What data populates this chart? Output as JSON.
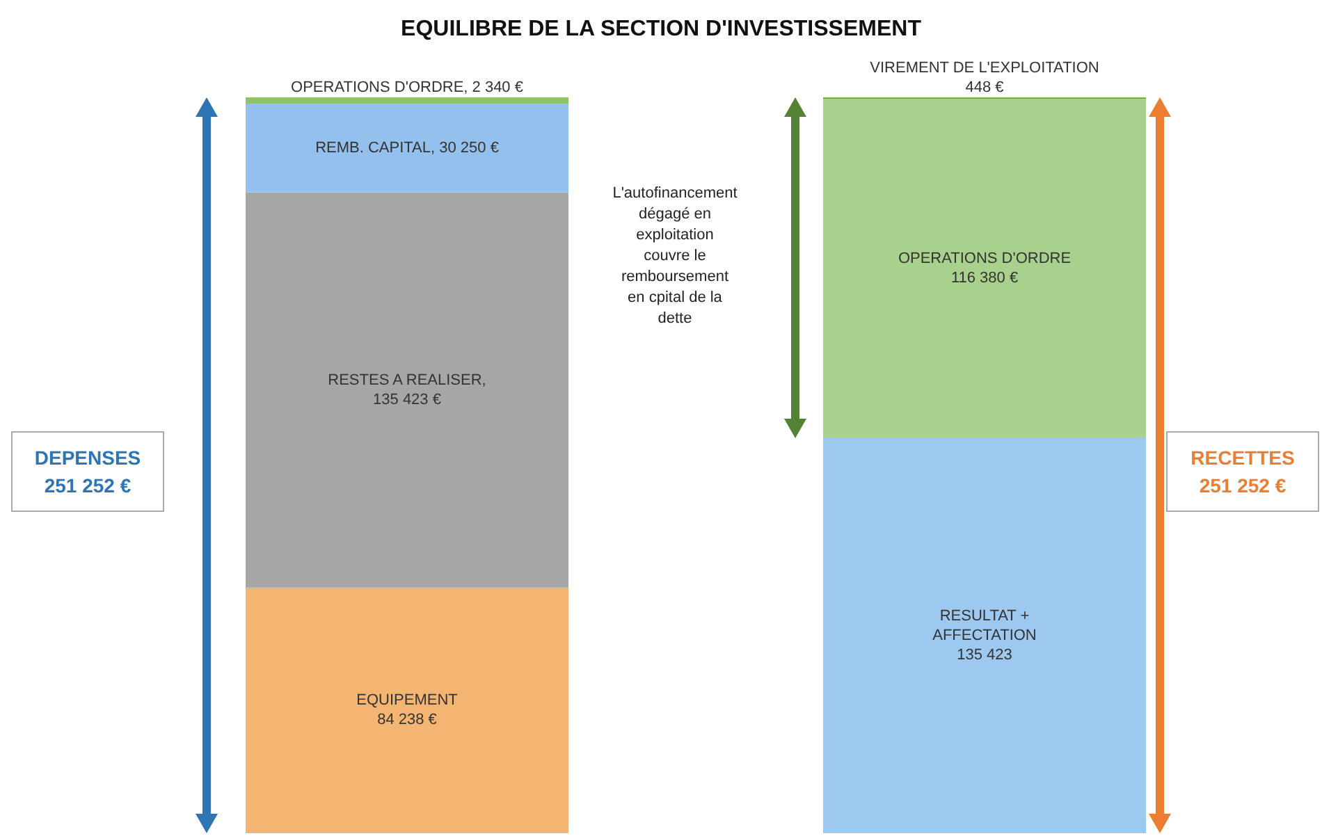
{
  "chart_data": {
    "type": "bar",
    "title": "EQUILIBRE DE LA SECTION D'INVESTISSEMENT",
    "categories": [
      null,
      null
    ],
    "stacked": true,
    "series": [
      {
        "color": "#f4b572",
        "values": [
          84238,
          null
        ],
        "value_labels": [
          "EQUIPEMENT\n84 238 €",
          null
        ]
      },
      {
        "color": "#a6a6a6",
        "values": [
          135423,
          null
        ],
        "value_labels": [
          "RESTES A REALISER,\n135 423 €",
          null
        ]
      },
      {
        "color": "#93c0ec",
        "values": [
          30250,
          null
        ],
        "value_labels": [
          "REMB. CAPITAL, 30 250 €",
          null
        ]
      },
      {
        "color": "#8fc36a",
        "values": [
          2340,
          null
        ],
        "value_labels": [
          "OPERATIONS D'ORDRE, 2 340 €",
          null
        ]
      },
      {
        "color": "#9dc8f0",
        "values": [
          null,
          135423
        ],
        "value_labels": [
          null,
          "RESULTAT +\nAFFECTATION\n135 423"
        ]
      },
      {
        "color": "#a9d18e",
        "values": [
          null,
          116380
        ],
        "value_labels": [
          null,
          "OPERATIONS D'ORDRE\n116 380 €"
        ]
      },
      {
        "color": "#70ad47",
        "values": [
          null,
          448
        ],
        "value_labels": [
          null,
          "VIREMENT DE L'EXPLOITATION\n448 €"
        ]
      }
    ],
    "annotations": [
      "DEPENSES\n251 252 €",
      "RECETTES\n251 252 €",
      "L'autofinancement\ndégagé en\nexploitation\ncouvre le\nremboursement\nen cpital de la\ndette"
    ]
  }
}
